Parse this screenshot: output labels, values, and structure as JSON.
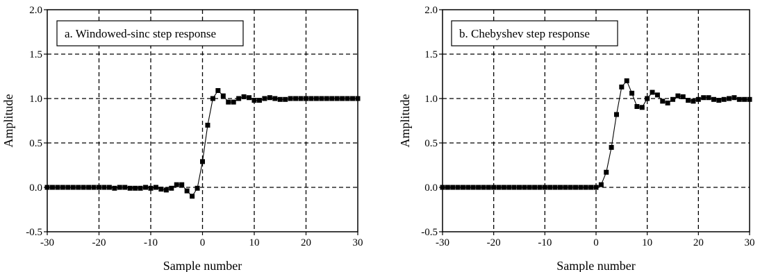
{
  "chart_data": [
    {
      "type": "line",
      "title": "a.  Windowed-sinc step response",
      "xlabel": "Sample number",
      "ylabel": "Amplitude",
      "xlim": [
        -30,
        30
      ],
      "ylim": [
        -0.5,
        2.0
      ],
      "xticks": [
        "-30",
        "-20",
        "-10",
        "0",
        "10",
        "20",
        "30"
      ],
      "yticks": [
        "-0.5",
        "0.0",
        "0.5",
        "1.0",
        "1.5",
        "2.0"
      ],
      "grid": true,
      "marker": "square",
      "x": [
        -30,
        -29,
        -28,
        -27,
        -26,
        -25,
        -24,
        -23,
        -22,
        -21,
        -20,
        -19,
        -18,
        -17,
        -16,
        -15,
        -14,
        -13,
        -12,
        -11,
        -10,
        -9,
        -8,
        -7,
        -6,
        -5,
        -4,
        -3,
        -2,
        -1,
        0,
        1,
        2,
        3,
        4,
        5,
        6,
        7,
        8,
        9,
        10,
        11,
        12,
        13,
        14,
        15,
        16,
        17,
        18,
        19,
        20,
        21,
        22,
        23,
        24,
        25,
        26,
        27,
        28,
        29,
        30
      ],
      "y": [
        0.0,
        0.0,
        0.0,
        0.0,
        0.0,
        0.0,
        0.0,
        0.0,
        0.0,
        0.0,
        0.0,
        0.0,
        0.0,
        -0.01,
        0.0,
        0.0,
        -0.01,
        -0.01,
        -0.01,
        0.0,
        -0.01,
        0.0,
        -0.02,
        -0.03,
        -0.01,
        0.03,
        0.03,
        -0.04,
        -0.1,
        -0.01,
        0.29,
        0.7,
        1.0,
        1.09,
        1.03,
        0.96,
        0.96,
        1.0,
        1.02,
        1.01,
        0.98,
        0.98,
        1.0,
        1.01,
        1.0,
        0.99,
        0.99,
        1.0,
        1.0,
        1.0,
        1.0,
        1.0,
        1.0,
        1.0,
        1.0,
        1.0,
        1.0,
        1.0,
        1.0,
        1.0,
        1.0
      ]
    },
    {
      "type": "line",
      "title": "b.  Chebyshev step response",
      "xlabel": "Sample number",
      "ylabel": "Amplitude",
      "xlim": [
        -30,
        30
      ],
      "ylim": [
        -0.5,
        2.0
      ],
      "xticks": [
        "-30",
        "-20",
        "-10",
        "0",
        "10",
        "20",
        "30"
      ],
      "yticks": [
        "-0.5",
        "0.0",
        "0.5",
        "1.0",
        "1.5",
        "2.0"
      ],
      "grid": true,
      "marker": "square",
      "x": [
        -30,
        -29,
        -28,
        -27,
        -26,
        -25,
        -24,
        -23,
        -22,
        -21,
        -20,
        -19,
        -18,
        -17,
        -16,
        -15,
        -14,
        -13,
        -12,
        -11,
        -10,
        -9,
        -8,
        -7,
        -6,
        -5,
        -4,
        -3,
        -2,
        -1,
        0,
        1,
        2,
        3,
        4,
        5,
        6,
        7,
        8,
        9,
        10,
        11,
        12,
        13,
        14,
        15,
        16,
        17,
        18,
        19,
        20,
        21,
        22,
        23,
        24,
        25,
        26,
        27,
        28,
        29,
        30
      ],
      "y": [
        0.0,
        0.0,
        0.0,
        0.0,
        0.0,
        0.0,
        0.0,
        0.0,
        0.0,
        0.0,
        0.0,
        0.0,
        0.0,
        0.0,
        0.0,
        0.0,
        0.0,
        0.0,
        0.0,
        0.0,
        0.0,
        0.0,
        0.0,
        0.0,
        0.0,
        0.0,
        0.0,
        0.0,
        0.0,
        0.0,
        0.0,
        0.03,
        0.17,
        0.45,
        0.82,
        1.13,
        1.2,
        1.06,
        0.91,
        0.9,
        1.0,
        1.07,
        1.04,
        0.97,
        0.95,
        0.99,
        1.03,
        1.02,
        0.98,
        0.97,
        0.99,
        1.01,
        1.01,
        0.99,
        0.98,
        0.99,
        1.0,
        1.01,
        0.99,
        0.99,
        0.99
      ]
    }
  ],
  "colors": {
    "line": "#000000",
    "grid": "#000000",
    "background": "#ffffff"
  }
}
